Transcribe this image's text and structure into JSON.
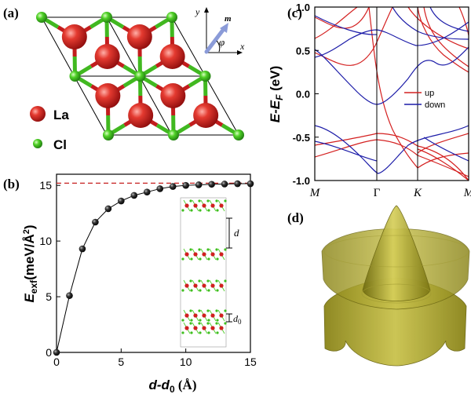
{
  "panel_labels": {
    "a": "(a)",
    "b": "(b)",
    "c": "(c)",
    "d": "(d)"
  },
  "panel_a": {
    "legend": [
      {
        "label": "La",
        "color": "#cf1f1f"
      },
      {
        "label": "Cl",
        "color": "#3fbf1f"
      }
    ],
    "axes": {
      "x": "x",
      "y": "y",
      "m": "m",
      "phi": "φ"
    }
  },
  "panel_b": {
    "ylabel_main": "E",
    "ylabel_sub": "exf",
    "ylabel_unit": "(meV/Å",
    "ylabel_sup": "2",
    "ylabel_close": ")",
    "xlabel_main": "d-d",
    "xlabel_sub": "0",
    "xlabel_unit": " (Å)",
    "inset_d": "d",
    "inset_d0": "d",
    "inset_d0_sub": "0"
  },
  "panel_c": {
    "ylabel": "E-E",
    "ylabel_sub": "F",
    "ylabel_unit": " (eV)",
    "legend": [
      {
        "label": "up",
        "color": "#d42020"
      },
      {
        "label": "down",
        "color": "#1c1ca8"
      }
    ]
  },
  "chart_data": [
    {
      "type": "scatter",
      "panel": "b",
      "x": [
        0,
        1,
        2,
        3,
        4,
        5,
        6,
        7,
        8,
        9,
        10,
        11,
        12,
        13,
        14,
        15
      ],
      "y": [
        0,
        5.1,
        9.3,
        11.7,
        12.9,
        13.6,
        14.1,
        14.4,
        14.7,
        14.9,
        15.0,
        15.05,
        15.1,
        15.12,
        15.15,
        15.15
      ],
      "reference_line": 15.2,
      "xlim": [
        0,
        15
      ],
      "ylim": [
        0,
        16
      ],
      "xticks": [
        "0",
        "5",
        "10",
        "15"
      ],
      "yticks": [
        "0",
        "5",
        "10",
        "15"
      ]
    },
    {
      "type": "line",
      "panel": "c",
      "ylim": [
        -1.0,
        1.0
      ],
      "yticks": [
        "-1.0",
        "-0.5",
        "0.0",
        "0.5",
        "1.0"
      ],
      "xticks": [
        "M",
        "Γ",
        "K",
        "M"
      ],
      "series": [
        {
          "name": "up",
          "color": "#d42020"
        },
        {
          "name": "down",
          "color": "#1c1ca8"
        }
      ]
    }
  ]
}
